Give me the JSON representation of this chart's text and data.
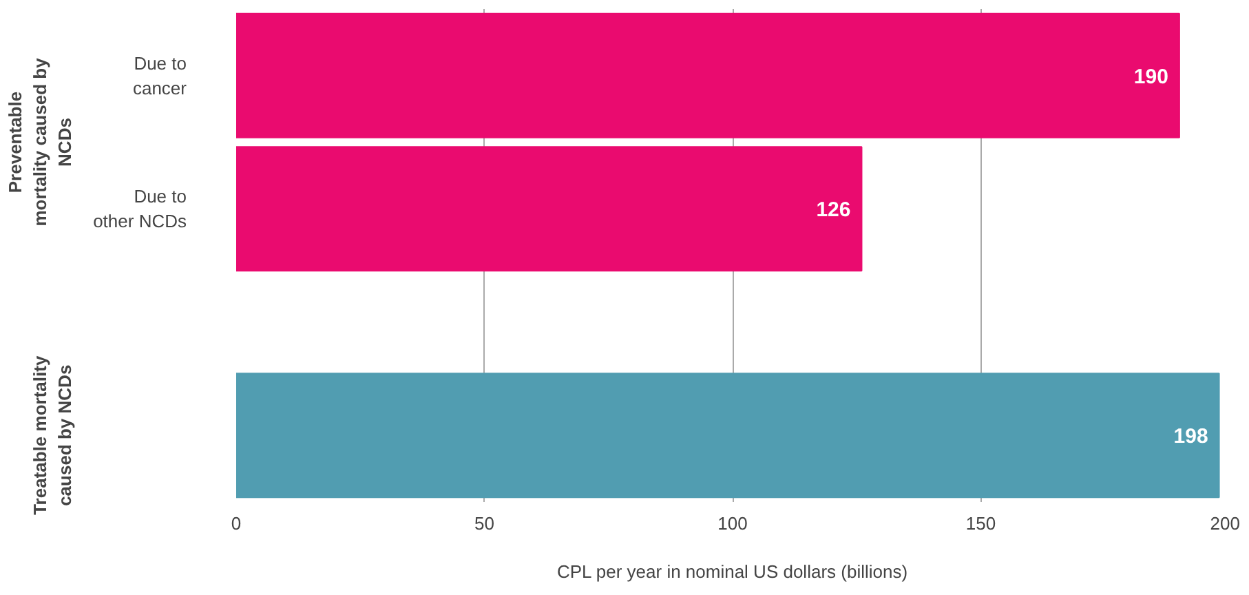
{
  "chart_data": {
    "type": "bar",
    "orientation": "horizontal",
    "categories": [
      "Due to cancer",
      "Due to other NCDs",
      null
    ],
    "values": [
      190,
      126,
      198
    ],
    "colors": [
      "#ea0b6f",
      "#ea0b6f",
      "#519db1"
    ],
    "xlabel": "CPL per year in nominal US dollars (billions)",
    "xlim": [
      0,
      200
    ],
    "xticks": [
      0,
      50,
      100,
      150,
      200
    ],
    "grid": "x",
    "data_labels": true,
    "annotations": [
      "Preventable mortality caused by NCDs",
      "Treatable mortality caused by NCDs"
    ]
  }
}
